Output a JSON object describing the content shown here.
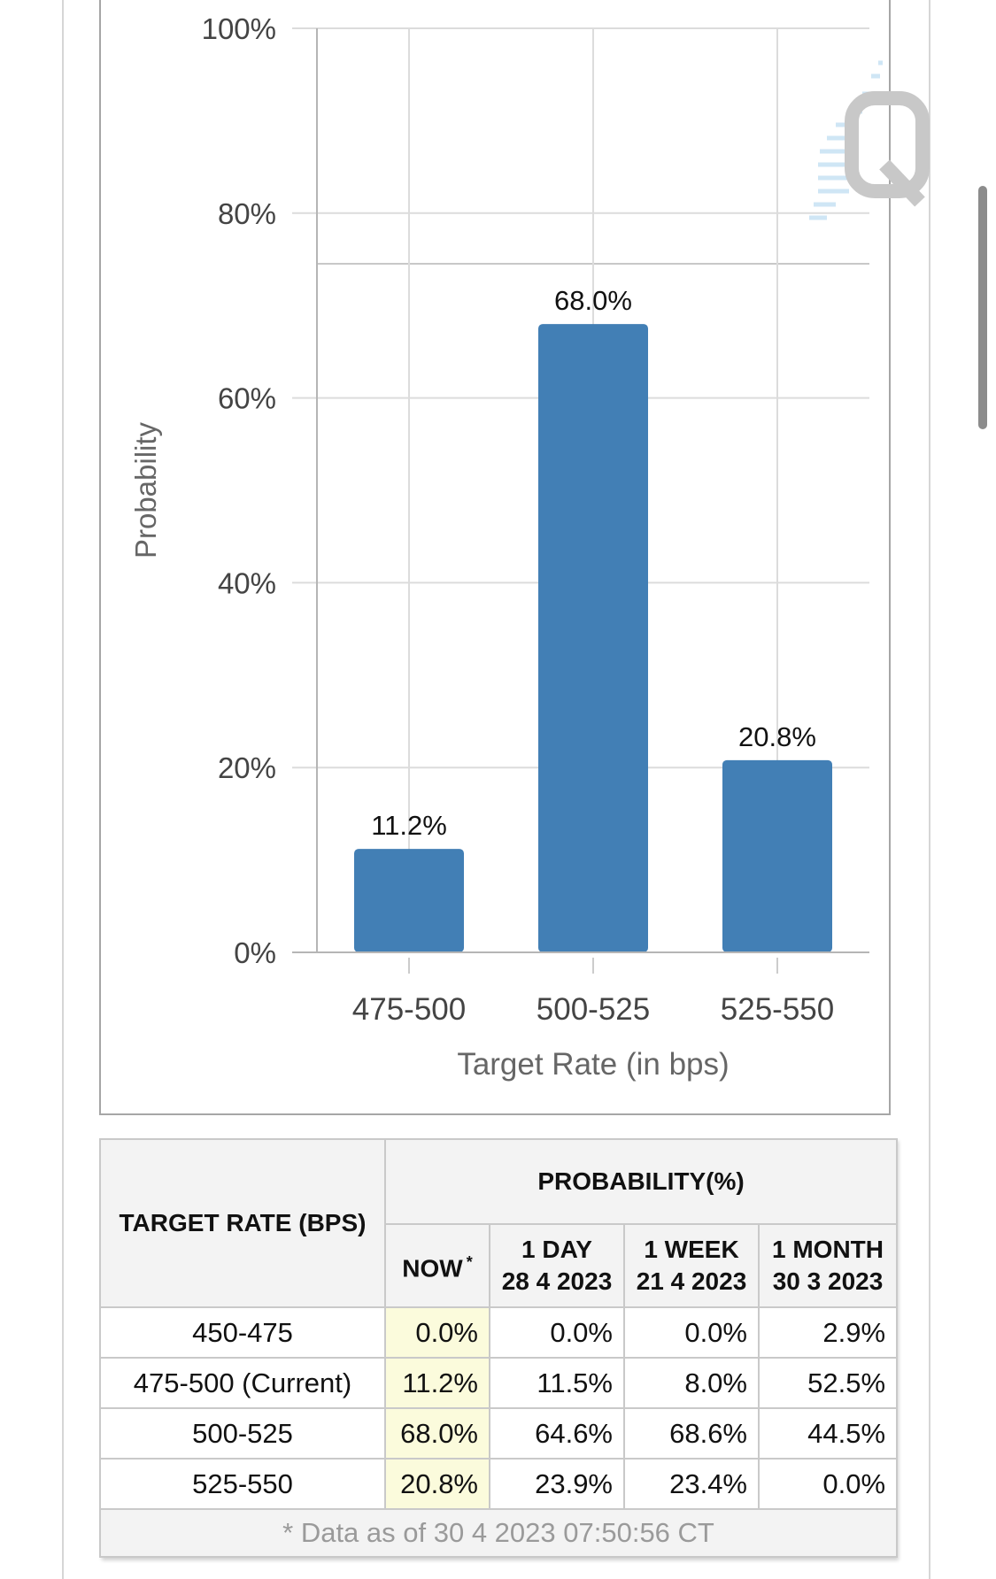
{
  "chart_data": {
    "type": "bar",
    "categories": [
      "475-500",
      "500-525",
      "525-550"
    ],
    "values": [
      11.2,
      68.0,
      20.8
    ],
    "data_labels": [
      "11.2%",
      "68.0%",
      "20.8%"
    ],
    "xlabel": "Target Rate (in bps)",
    "ylabel": "Probability",
    "ylim": [
      0,
      100
    ],
    "yticks": [
      "0%",
      "20%",
      "40%",
      "60%",
      "80%",
      "100%"
    ],
    "grid": true,
    "bar_color": "#427fb5"
  },
  "table": {
    "rate_header": "TARGET RATE (BPS)",
    "prob_header": "PROBABILITY(%)",
    "columns": [
      {
        "label": "NOW",
        "marker": "*",
        "date": ""
      },
      {
        "label": "1 DAY",
        "date": "28 4 2023"
      },
      {
        "label": "1 WEEK",
        "date": "21 4 2023"
      },
      {
        "label": "1 MONTH",
        "date": "30 3 2023"
      }
    ],
    "rows": [
      {
        "rate": "450-475",
        "values": [
          "0.0%",
          "0.0%",
          "0.0%",
          "2.9%"
        ]
      },
      {
        "rate": "475-500 (Current)",
        "values": [
          "11.2%",
          "11.5%",
          "8.0%",
          "52.5%"
        ]
      },
      {
        "rate": "500-525",
        "values": [
          "68.0%",
          "64.6%",
          "68.6%",
          "44.5%"
        ]
      },
      {
        "rate": "525-550",
        "values": [
          "20.8%",
          "23.9%",
          "23.4%",
          "0.0%"
        ]
      }
    ],
    "footnote": "* Data as of 30 4 2023 07:50:56 CT"
  },
  "colors": {
    "now_highlight": "#fbfbdc",
    "header_bg": "#f3f3f3"
  }
}
